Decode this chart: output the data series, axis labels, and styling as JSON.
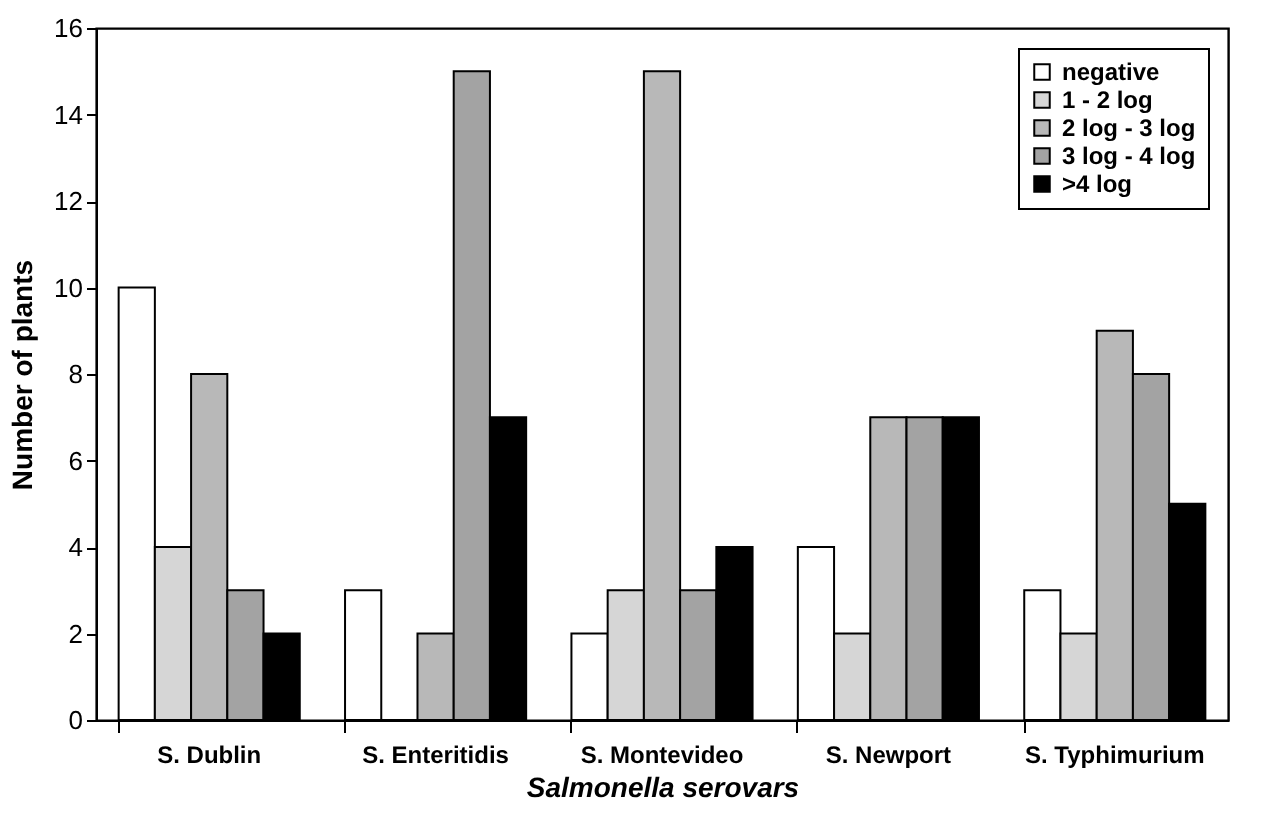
{
  "chart_data": {
    "type": "bar",
    "xlabel": "Salmonella serovars",
    "ylabel": "Number of plants",
    "categories": [
      "S. Dublin",
      "S. Enteritidis",
      "S. Montevideo",
      "S. Newport",
      "S. Typhimurium"
    ],
    "series": [
      {
        "name": "negative",
        "color": "#ffffff",
        "values": [
          10,
          3,
          2,
          4,
          3
        ]
      },
      {
        "name": "1 - 2 log",
        "color": "#d6d6d6",
        "values": [
          4,
          0,
          3,
          2,
          2
        ]
      },
      {
        "name": "2 log - 3 log",
        "color": "#b8b8b8",
        "values": [
          8,
          2,
          15,
          7,
          9
        ]
      },
      {
        "name": "3 log - 4 log",
        "color": "#a3a3a3",
        "values": [
          3,
          15,
          3,
          7,
          8
        ]
      },
      {
        "name": ">4 log",
        "color": "#000000",
        "values": [
          2,
          7,
          4,
          7,
          5
        ]
      }
    ],
    "ylim": [
      0,
      16
    ],
    "yticks": [
      0,
      2,
      4,
      6,
      8,
      10,
      12,
      14,
      16
    ],
    "legend": "top right"
  }
}
